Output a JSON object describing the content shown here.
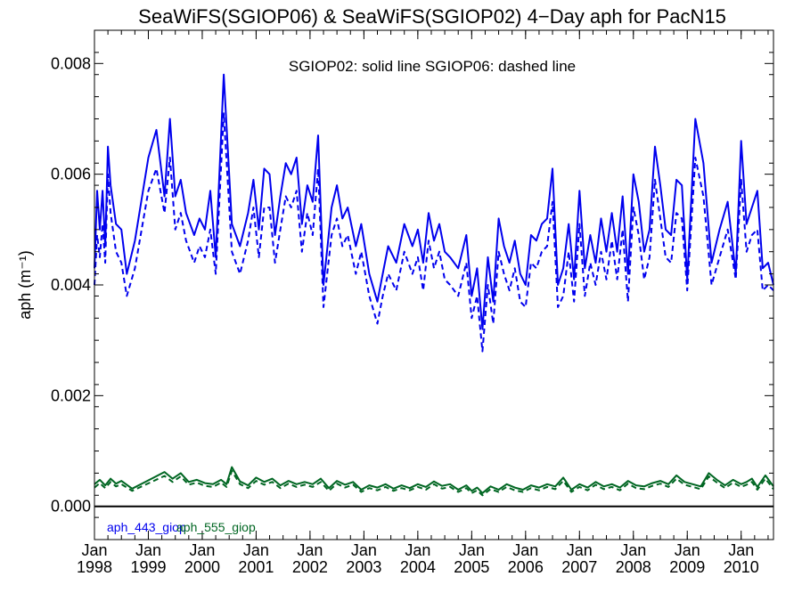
{
  "chart_data": {
    "type": "line",
    "title": "SeaWiFS(SGIOP06) & SeaWiFS(SGIOP02) 4−Day aph for PacN15",
    "ylabel": "aph (m⁻¹)",
    "annotation": "SGIOP02: solid line   SGIOP06: dashed line",
    "xlim": [
      1998.0,
      2010.6
    ],
    "ylim": [
      -0.0006,
      0.0086
    ],
    "y_ticks": [
      "0.000",
      "0.002",
      "0.004",
      "0.006",
      "0.008"
    ],
    "x_ticks": [
      {
        "month": "Jan",
        "year": "1998"
      },
      {
        "month": "Jan",
        "year": "1999"
      },
      {
        "month": "Jan",
        "year": "2000"
      },
      {
        "month": "Jan",
        "year": "2001"
      },
      {
        "month": "Jan",
        "year": "2002"
      },
      {
        "month": "Jan",
        "year": "2003"
      },
      {
        "month": "Jan",
        "year": "2004"
      },
      {
        "month": "Jan",
        "year": "2005"
      },
      {
        "month": "Jan",
        "year": "2006"
      },
      {
        "month": "Jan",
        "year": "2007"
      },
      {
        "month": "Jan",
        "year": "2008"
      },
      {
        "month": "Jan",
        "year": "2009"
      },
      {
        "month": "Jan",
        "year": "2010"
      }
    ],
    "legend": [
      {
        "label": "aph_443_giop",
        "color": "#0000ee"
      },
      {
        "label": "aph_555_giop",
        "color": "#006622"
      }
    ],
    "series": [
      {
        "name": "aph_443_giop",
        "style": "solid",
        "color": "#0000ee",
        "x": [
          1998.0,
          1998.05,
          1998.1,
          1998.15,
          1998.2,
          1998.25,
          1998.3,
          1998.4,
          1998.5,
          1998.6,
          1998.75,
          1999.0,
          1999.15,
          1999.3,
          1999.4,
          1999.5,
          1999.6,
          1999.7,
          1999.85,
          1999.95,
          2000.05,
          2000.15,
          2000.25,
          2000.4,
          2000.55,
          2000.7,
          2000.85,
          2000.95,
          2001.05,
          2001.15,
          2001.25,
          2001.35,
          2001.45,
          2001.55,
          2001.65,
          2001.75,
          2001.85,
          2001.95,
          2002.05,
          2002.15,
          2002.25,
          2002.4,
          2002.5,
          2002.6,
          2002.7,
          2002.85,
          2002.95,
          2003.1,
          2003.25,
          2003.35,
          2003.45,
          2003.6,
          2003.75,
          2003.9,
          2004.0,
          2004.1,
          2004.2,
          2004.3,
          2004.4,
          2004.5,
          2004.6,
          2004.75,
          2004.9,
          2005.0,
          2005.1,
          2005.2,
          2005.3,
          2005.4,
          2005.5,
          2005.6,
          2005.7,
          2005.8,
          2005.9,
          2006.0,
          2006.1,
          2006.2,
          2006.3,
          2006.4,
          2006.5,
          2006.6,
          2006.7,
          2006.8,
          2006.9,
          2007.0,
          2007.1,
          2007.2,
          2007.3,
          2007.4,
          2007.5,
          2007.6,
          2007.7,
          2007.8,
          2007.9,
          2008.0,
          2008.1,
          2008.2,
          2008.3,
          2008.4,
          2008.5,
          2008.6,
          2008.7,
          2008.8,
          2008.9,
          2009.0,
          2009.15,
          2009.3,
          2009.45,
          2009.6,
          2009.75,
          2009.9,
          2010.0,
          2010.1,
          2010.2,
          2010.3,
          2010.4,
          2010.5,
          2010.6
        ],
        "y": [
          0.0043,
          0.0057,
          0.005,
          0.0057,
          0.0047,
          0.0065,
          0.0058,
          0.0051,
          0.005,
          0.0042,
          0.0048,
          0.0063,
          0.0068,
          0.0056,
          0.007,
          0.0056,
          0.0059,
          0.0053,
          0.0049,
          0.0052,
          0.005,
          0.0057,
          0.0045,
          0.0078,
          0.0051,
          0.0047,
          0.0053,
          0.0059,
          0.005,
          0.0061,
          0.006,
          0.0049,
          0.0056,
          0.0062,
          0.006,
          0.0063,
          0.0051,
          0.0058,
          0.0055,
          0.0067,
          0.004,
          0.0054,
          0.0058,
          0.0052,
          0.0054,
          0.0047,
          0.0051,
          0.0042,
          0.0037,
          0.0042,
          0.0047,
          0.0044,
          0.0051,
          0.0047,
          0.005,
          0.0044,
          0.0053,
          0.0048,
          0.0051,
          0.0046,
          0.0045,
          0.0043,
          0.0049,
          0.0038,
          0.0043,
          0.0032,
          0.0045,
          0.0037,
          0.0052,
          0.0047,
          0.0044,
          0.0048,
          0.0042,
          0.004,
          0.0049,
          0.0048,
          0.0051,
          0.0052,
          0.0061,
          0.004,
          0.0043,
          0.0051,
          0.0041,
          0.0057,
          0.0043,
          0.0049,
          0.0044,
          0.0052,
          0.0046,
          0.0053,
          0.0046,
          0.0056,
          0.0042,
          0.006,
          0.0055,
          0.0046,
          0.005,
          0.0065,
          0.0058,
          0.005,
          0.0049,
          0.0059,
          0.0058,
          0.0041,
          0.007,
          0.0062,
          0.0044,
          0.005,
          0.0055,
          0.0042,
          0.0066,
          0.0051,
          0.0054,
          0.0057,
          0.0043,
          0.0044,
          0.004
        ]
      },
      {
        "name": "aph_443_giop",
        "style": "dashed",
        "color": "#0000ee",
        "x": [
          1998.0,
          1998.05,
          1998.1,
          1998.15,
          1998.2,
          1998.25,
          1998.3,
          1998.4,
          1998.5,
          1998.6,
          1998.75,
          1999.0,
          1999.15,
          1999.3,
          1999.4,
          1999.5,
          1999.6,
          1999.7,
          1999.85,
          1999.95,
          2000.05,
          2000.15,
          2000.25,
          2000.4,
          2000.55,
          2000.7,
          2000.85,
          2000.95,
          2001.05,
          2001.15,
          2001.25,
          2001.35,
          2001.45,
          2001.55,
          2001.65,
          2001.75,
          2001.85,
          2001.95,
          2002.05,
          2002.15,
          2002.25,
          2002.4,
          2002.5,
          2002.6,
          2002.7,
          2002.85,
          2002.95,
          2003.1,
          2003.25,
          2003.35,
          2003.45,
          2003.6,
          2003.75,
          2003.9,
          2004.0,
          2004.1,
          2004.2,
          2004.3,
          2004.4,
          2004.5,
          2004.6,
          2004.75,
          2004.9,
          2005.0,
          2005.1,
          2005.2,
          2005.3,
          2005.4,
          2005.5,
          2005.6,
          2005.7,
          2005.8,
          2005.9,
          2006.0,
          2006.1,
          2006.2,
          2006.3,
          2006.4,
          2006.5,
          2006.6,
          2006.7,
          2006.8,
          2006.9,
          2007.0,
          2007.1,
          2007.2,
          2007.3,
          2007.4,
          2007.5,
          2007.6,
          2007.7,
          2007.8,
          2007.9,
          2008.0,
          2008.1,
          2008.2,
          2008.3,
          2008.4,
          2008.5,
          2008.6,
          2008.7,
          2008.8,
          2008.9,
          2009.0,
          2009.15,
          2009.3,
          2009.45,
          2009.6,
          2009.75,
          2009.9,
          2010.0,
          2010.1,
          2010.2,
          2010.3,
          2010.4,
          2010.5,
          2010.6
        ],
        "y": [
          0.004,
          0.0049,
          0.0045,
          0.0051,
          0.0044,
          0.006,
          0.0053,
          0.0046,
          0.0044,
          0.0038,
          0.0043,
          0.0057,
          0.0061,
          0.0053,
          0.0063,
          0.005,
          0.0053,
          0.0048,
          0.0044,
          0.0047,
          0.0045,
          0.005,
          0.0042,
          0.0071,
          0.0046,
          0.0042,
          0.0048,
          0.0054,
          0.0045,
          0.0054,
          0.0054,
          0.0044,
          0.005,
          0.0056,
          0.0054,
          0.0057,
          0.0046,
          0.0053,
          0.0049,
          0.0061,
          0.0036,
          0.0049,
          0.0052,
          0.0047,
          0.0049,
          0.0042,
          0.0046,
          0.0038,
          0.0033,
          0.0038,
          0.0042,
          0.0039,
          0.0046,
          0.0042,
          0.0045,
          0.0039,
          0.0048,
          0.0043,
          0.0046,
          0.0041,
          0.004,
          0.0038,
          0.0044,
          0.0034,
          0.0038,
          0.0028,
          0.004,
          0.0033,
          0.0046,
          0.0042,
          0.0039,
          0.0043,
          0.0037,
          0.0036,
          0.0044,
          0.0043,
          0.0046,
          0.0047,
          0.0055,
          0.0036,
          0.0038,
          0.0046,
          0.0037,
          0.0051,
          0.0038,
          0.0044,
          0.004,
          0.0046,
          0.0041,
          0.0048,
          0.0041,
          0.005,
          0.0037,
          0.0054,
          0.0049,
          0.0041,
          0.0045,
          0.0059,
          0.0052,
          0.0045,
          0.0044,
          0.0053,
          0.0052,
          0.0039,
          0.0063,
          0.0056,
          0.004,
          0.0045,
          0.005,
          0.0041,
          0.0059,
          0.0046,
          0.0049,
          0.005,
          0.0039,
          0.004,
          0.0039
        ]
      },
      {
        "name": "aph_555_giop",
        "style": "solid",
        "color": "#006622",
        "x": [
          1998.0,
          1998.1,
          1998.2,
          1998.3,
          1998.4,
          1998.5,
          1998.7,
          1998.9,
          1999.1,
          1999.3,
          1999.45,
          1999.6,
          1999.75,
          1999.9,
          2000.05,
          2000.2,
          2000.35,
          2000.45,
          2000.55,
          2000.7,
          2000.85,
          2001.0,
          2001.15,
          2001.3,
          2001.45,
          2001.6,
          2001.75,
          2001.9,
          2002.05,
          2002.2,
          2002.35,
          2002.5,
          2002.65,
          2002.8,
          2002.95,
          2003.1,
          2003.25,
          2003.4,
          2003.55,
          2003.7,
          2003.85,
          2004.0,
          2004.15,
          2004.3,
          2004.45,
          2004.6,
          2004.75,
          2004.9,
          2005.0,
          2005.1,
          2005.2,
          2005.35,
          2005.5,
          2005.65,
          2005.8,
          2005.95,
          2006.1,
          2006.25,
          2006.4,
          2006.55,
          2006.7,
          2006.85,
          2007.0,
          2007.15,
          2007.3,
          2007.45,
          2007.6,
          2007.75,
          2007.9,
          2008.05,
          2008.2,
          2008.35,
          2008.5,
          2008.65,
          2008.8,
          2008.95,
          2009.1,
          2009.25,
          2009.4,
          2009.55,
          2009.7,
          2009.85,
          2010.0,
          2010.1,
          2010.2,
          2010.3,
          2010.45,
          2010.6
        ],
        "y": [
          0.0004,
          0.00048,
          0.00038,
          0.0005,
          0.00041,
          0.00046,
          0.00032,
          0.00042,
          0.00052,
          0.00062,
          0.0005,
          0.0006,
          0.00044,
          0.00048,
          0.00042,
          0.0004,
          0.00048,
          0.0004,
          0.00071,
          0.00045,
          0.00038,
          0.00052,
          0.00044,
          0.0005,
          0.00038,
          0.00046,
          0.0004,
          0.00044,
          0.0004,
          0.0005,
          0.00033,
          0.00046,
          0.00039,
          0.00044,
          0.0003,
          0.00038,
          0.00034,
          0.0004,
          0.00032,
          0.00038,
          0.00033,
          0.0004,
          0.00035,
          0.00045,
          0.00037,
          0.0004,
          0.0003,
          0.00038,
          0.00028,
          0.00034,
          0.00024,
          0.00036,
          0.0003,
          0.0004,
          0.00034,
          0.0003,
          0.00038,
          0.00034,
          0.0004,
          0.00036,
          0.00052,
          0.0003,
          0.0004,
          0.00034,
          0.00044,
          0.00036,
          0.0004,
          0.00034,
          0.00046,
          0.00038,
          0.00036,
          0.00042,
          0.00046,
          0.0004,
          0.00056,
          0.00044,
          0.0004,
          0.00036,
          0.0006,
          0.00048,
          0.00038,
          0.00048,
          0.0004,
          0.00044,
          0.0005,
          0.00035,
          0.00056,
          0.00036
        ]
      },
      {
        "name": "aph_555_giop",
        "style": "dashed",
        "color": "#006622",
        "x": [
          1998.0,
          1998.1,
          1998.2,
          1998.3,
          1998.4,
          1998.5,
          1998.7,
          1998.9,
          1999.1,
          1999.3,
          1999.45,
          1999.6,
          1999.75,
          1999.9,
          2000.05,
          2000.2,
          2000.35,
          2000.45,
          2000.55,
          2000.7,
          2000.85,
          2001.0,
          2001.15,
          2001.3,
          2001.45,
          2001.6,
          2001.75,
          2001.9,
          2002.05,
          2002.2,
          2002.35,
          2002.5,
          2002.65,
          2002.8,
          2002.95,
          2003.1,
          2003.25,
          2003.4,
          2003.55,
          2003.7,
          2003.85,
          2004.0,
          2004.15,
          2004.3,
          2004.45,
          2004.6,
          2004.75,
          2004.9,
          2005.0,
          2005.1,
          2005.2,
          2005.35,
          2005.5,
          2005.65,
          2005.8,
          2005.95,
          2006.1,
          2006.25,
          2006.4,
          2006.55,
          2006.7,
          2006.85,
          2007.0,
          2007.15,
          2007.3,
          2007.45,
          2007.6,
          2007.75,
          2007.9,
          2008.05,
          2008.2,
          2008.35,
          2008.5,
          2008.65,
          2008.8,
          2008.95,
          2009.1,
          2009.25,
          2009.4,
          2009.55,
          2009.7,
          2009.85,
          2010.0,
          2010.1,
          2010.2,
          2010.3,
          2010.45,
          2010.6
        ],
        "y": [
          0.00034,
          0.00042,
          0.00033,
          0.00044,
          0.00036,
          0.0004,
          0.00028,
          0.00037,
          0.00046,
          0.00055,
          0.00044,
          0.00054,
          0.00039,
          0.00043,
          0.00037,
          0.00035,
          0.00043,
          0.00035,
          0.00064,
          0.0004,
          0.00033,
          0.00046,
          0.00039,
          0.00044,
          0.00033,
          0.00041,
          0.00035,
          0.00039,
          0.00035,
          0.00044,
          0.00028,
          0.00041,
          0.00034,
          0.00039,
          0.00026,
          0.00033,
          0.00029,
          0.00035,
          0.00028,
          0.00033,
          0.00029,
          0.00035,
          0.0003,
          0.0004,
          0.00032,
          0.00035,
          0.00026,
          0.00033,
          0.00024,
          0.00029,
          0.0002,
          0.00031,
          0.00026,
          0.00035,
          0.00029,
          0.00026,
          0.00033,
          0.00029,
          0.00035,
          0.00031,
          0.00046,
          0.00026,
          0.00035,
          0.00029,
          0.00039,
          0.00031,
          0.00035,
          0.00029,
          0.00041,
          0.00033,
          0.00031,
          0.00037,
          0.00041,
          0.00035,
          0.0005,
          0.00039,
          0.00035,
          0.00031,
          0.00054,
          0.00043,
          0.00033,
          0.00043,
          0.00035,
          0.00039,
          0.00044,
          0.0003,
          0.0005,
          0.00031
        ]
      }
    ]
  }
}
